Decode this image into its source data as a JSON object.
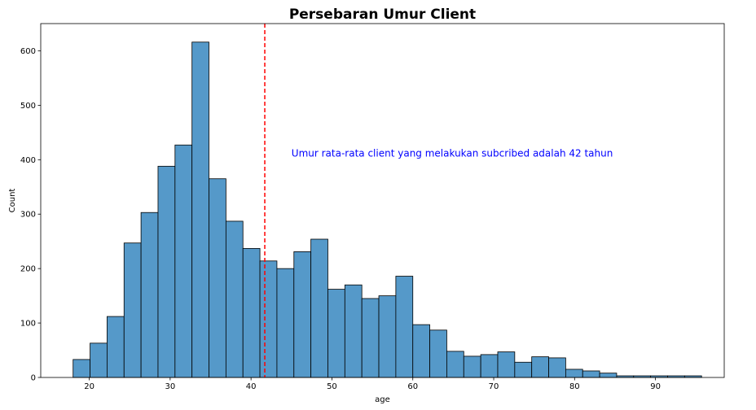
{
  "chart_data": {
    "type": "bar",
    "title": "Persebaran Umur Client",
    "xlabel": "age",
    "ylabel": "Count",
    "xlim": [
      14,
      98.5
    ],
    "ylim": [
      0,
      650
    ],
    "xticks": [
      20,
      30,
      40,
      50,
      60,
      70,
      80,
      90
    ],
    "yticks": [
      0,
      100,
      200,
      300,
      400,
      500,
      600
    ],
    "bin_edges": [
      18,
      20.1,
      22.2,
      24.3,
      26.4,
      28.5,
      30.6,
      32.7,
      34.8,
      36.9,
      39,
      41.1,
      43.2,
      45.3,
      47.4,
      49.5,
      51.6,
      53.7,
      55.8,
      57.9,
      60,
      62.1,
      64.2,
      66.3,
      68.4,
      70.5,
      72.6,
      74.7,
      76.8,
      78.9,
      81,
      83.1,
      85.2,
      87.3,
      89.4,
      91.5,
      93.6,
      95.7
    ],
    "values": [
      33,
      63,
      112,
      247,
      303,
      388,
      427,
      616,
      365,
      287,
      237,
      214,
      200,
      231,
      254,
      162,
      170,
      145,
      150,
      186,
      97,
      87,
      48,
      39,
      42,
      47,
      28,
      38,
      36,
      15,
      12,
      8,
      3,
      3,
      3,
      3,
      3
    ],
    "bar_color": "#5599c9",
    "edge_color": "#000000",
    "mean_line": {
      "x": 41.7,
      "color": "#ff0000",
      "style": "dashed"
    },
    "annotation": {
      "text": "Umur rata-rata client yang melakukan subcribed adalah 42 tahun",
      "x": 45,
      "y": 400,
      "color": "#0000ff"
    },
    "grid": false
  }
}
